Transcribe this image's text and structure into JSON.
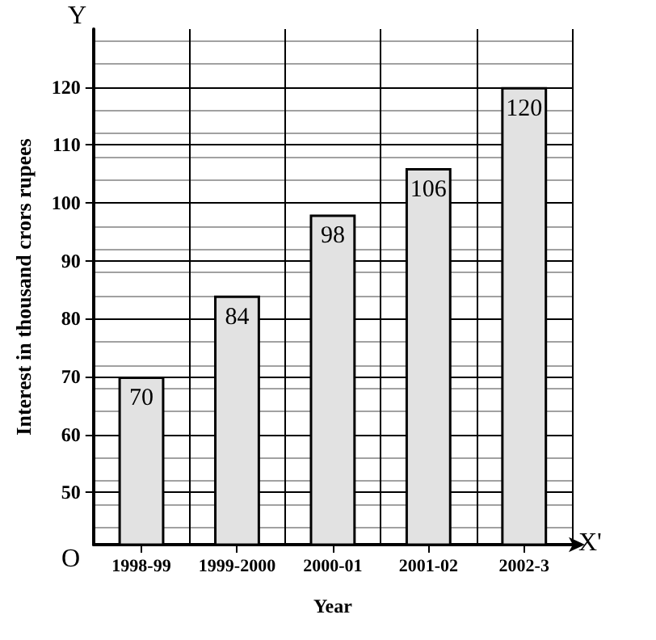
{
  "chart_data": {
    "type": "bar",
    "xlabel": "Year",
    "ylabel": "Interest in thousand crors rupees",
    "categories": [
      "1998-99",
      "1999-2000",
      "2000-01",
      "2001-02",
      "2002-3"
    ],
    "values": [
      70,
      84,
      98,
      106,
      120
    ],
    "color": "#e2e2e2",
    "ylim": [
      41,
      130
    ],
    "yticks": [
      50,
      60,
      70,
      80,
      90,
      100,
      110,
      120
    ],
    "grid": true,
    "data_labels": true,
    "annotations": [
      "Y",
      "X'",
      "O"
    ]
  }
}
